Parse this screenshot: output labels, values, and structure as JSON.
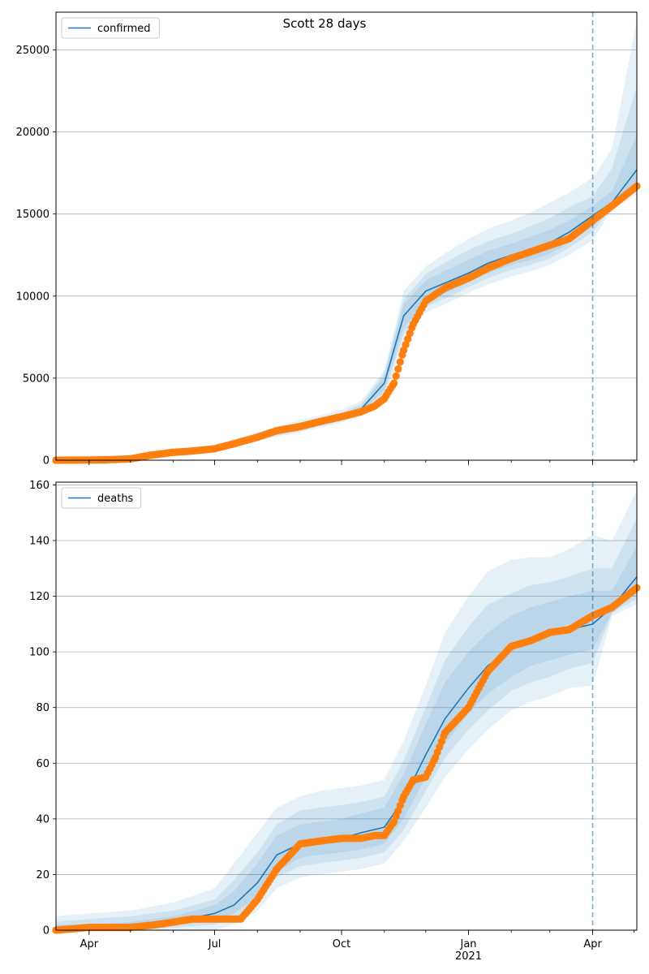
{
  "figure": {
    "title": "Scott 28 days"
  },
  "theme": {
    "line": "#1f77b4",
    "points": "#ff7f0e",
    "band": "#1f77b4",
    "grid": "#b0b0b0"
  },
  "chart_data": [
    {
      "type": "line",
      "name": "confirmed-panel",
      "legend": "confirmed",
      "legend_position": "top-left",
      "grid": "horizontal",
      "x_range": [
        "2020-03-08",
        "2021-05-03"
      ],
      "ylim": [
        0,
        27300
      ],
      "yticks": [
        0,
        5000,
        10000,
        15000,
        20000,
        25000
      ],
      "forecast_start": "2021-04-01",
      "model": {
        "x": [
          "2020-03-08",
          "2020-04-01",
          "2020-05-01",
          "2020-06-01",
          "2020-07-01",
          "2020-08-01",
          "2020-09-01",
          "2020-10-01",
          "2020-10-15",
          "2020-11-01",
          "2020-11-15",
          "2020-12-01",
          "2020-12-15",
          "2021-01-01",
          "2021-01-15",
          "2021-02-01",
          "2021-02-15",
          "2021-03-01",
          "2021-03-15",
          "2021-04-01",
          "2021-04-15",
          "2021-05-03"
        ],
        "y": [
          0,
          10,
          80,
          480,
          700,
          1400,
          2000,
          2650,
          3100,
          4700,
          8800,
          10300,
          10800,
          11400,
          12000,
          12500,
          12850,
          13250,
          13900,
          14900,
          15700,
          17700
        ],
        "bands": [
          {
            "lower": [
              0,
              0,
              20,
              380,
              560,
              1200,
              1700,
              2300,
              2700,
              3800,
              7200,
              9000,
              9500,
              10200,
              10700,
              11200,
              11500,
              11900,
              12500,
              13400,
              15300,
              16200
            ],
            "upper": [
              200,
              300,
              260,
              680,
              920,
              1700,
              2450,
              3050,
              3600,
              5500,
              10300,
              11800,
              12600,
              13500,
              14100,
              14600,
              15100,
              15700,
              16300,
              17200,
              19000,
              26800
            ]
          },
          {
            "lower": [
              0,
              0,
              40,
              410,
              610,
              1270,
              1800,
              2400,
              2820,
              4050,
              7700,
              9350,
              9850,
              10550,
              11100,
              11600,
              11900,
              12300,
              12950,
              13900,
              15400,
              16600
            ],
            "upper": [
              140,
              200,
              190,
              600,
              840,
              1600,
              2300,
              2900,
              3420,
              5300,
              9800,
              11350,
              12050,
              12800,
              13350,
              13800,
              14250,
              14750,
              15400,
              16100,
              17800,
              22800
            ]
          },
          {
            "lower": [
              0,
              0,
              55,
              440,
              650,
              1320,
              1880,
              2480,
              2920,
              4300,
              8100,
              9650,
              10150,
              10850,
              11400,
              11900,
              12200,
              12600,
              13250,
              14250,
              15500,
              16900
            ],
            "upper": [
              90,
              130,
              140,
              550,
              780,
              1520,
              2180,
              2800,
              3280,
              5100,
              9500,
              10950,
              11550,
              12200,
              12750,
              13200,
              13600,
              14050,
              14600,
              15500,
              16400,
              19800
            ]
          }
        ]
      },
      "observed": {
        "x": [
          "2020-03-08",
          "2020-04-01",
          "2020-04-15",
          "2020-05-01",
          "2020-05-15",
          "2020-06-01",
          "2020-06-15",
          "2020-07-01",
          "2020-07-15",
          "2020-08-01",
          "2020-08-15",
          "2020-09-01",
          "2020-09-15",
          "2020-10-01",
          "2020-10-15",
          "2020-10-25",
          "2020-11-01",
          "2020-11-08",
          "2020-11-15",
          "2020-11-22",
          "2020-12-01",
          "2020-12-15",
          "2021-01-01",
          "2021-01-15",
          "2021-02-01",
          "2021-02-15",
          "2021-03-01",
          "2021-03-15",
          "2021-04-01",
          "2021-04-15",
          "2021-05-03"
        ],
        "y": [
          0,
          10,
          30,
          80,
          300,
          480,
          560,
          700,
          1000,
          1400,
          1800,
          2050,
          2350,
          2650,
          2950,
          3300,
          3750,
          4700,
          6700,
          8300,
          9700,
          10500,
          11100,
          11700,
          12300,
          12700,
          13100,
          13500,
          14600,
          15500,
          16700
        ]
      }
    },
    {
      "type": "line",
      "name": "deaths-panel",
      "legend": "deaths",
      "legend_position": "top-left",
      "grid": "horizontal",
      "x_range": [
        "2020-03-08",
        "2021-05-03"
      ],
      "ylim": [
        0,
        161
      ],
      "yticks": [
        0,
        20,
        40,
        60,
        80,
        100,
        120,
        140,
        160
      ],
      "xticks": [
        {
          "date": "2020-04-01",
          "label": "Apr"
        },
        {
          "date": "2020-07-01",
          "label": "Jul"
        },
        {
          "date": "2020-10-01",
          "label": "Oct"
        },
        {
          "date": "2021-01-01",
          "label": "Jan"
        },
        {
          "date": "2021-04-01",
          "label": "Apr"
        }
      ],
      "xtick_year_label": "2021",
      "forecast_start": "2021-04-01",
      "model": {
        "x": [
          "2020-03-08",
          "2020-04-01",
          "2020-05-01",
          "2020-06-01",
          "2020-07-01",
          "2020-07-15",
          "2020-08-01",
          "2020-08-15",
          "2020-09-01",
          "2020-09-15",
          "2020-10-01",
          "2020-10-15",
          "2020-11-01",
          "2020-11-15",
          "2020-12-01",
          "2020-12-15",
          "2021-01-01",
          "2021-01-15",
          "2021-02-01",
          "2021-02-15",
          "2021-03-01",
          "2021-03-15",
          "2021-04-01",
          "2021-04-15",
          "2021-05-03"
        ],
        "y": [
          0,
          1,
          1,
          3,
          6,
          9,
          17,
          27,
          31,
          32,
          33,
          35,
          37,
          47,
          63,
          76,
          87,
          95,
          101,
          104,
          106,
          108,
          110,
          116,
          127
        ],
        "bands": [
          {
            "lower": [
              0,
              0,
              0,
              0,
              0,
              2,
              7,
              15,
              19,
              20,
              21,
              22,
              24,
              32,
              44,
              55,
              65,
              72,
              79,
              82,
              84,
              87,
              88,
              113,
              117
            ],
            "upper": [
              5,
              6,
              7,
              10,
              15,
              24,
              35,
              44,
              48,
              50,
              51,
              52,
              54,
              68,
              88,
              107,
              120,
              129,
              133,
              134,
              134,
              137,
              142,
              140,
              158
            ]
          },
          {
            "lower": [
              0,
              0,
              0,
              1,
              2,
              4,
              10,
              19,
              23,
              24,
              25,
              26,
              28,
              36,
              50,
              62,
              72,
              79,
              86,
              89,
              91,
              94,
              96,
              114,
              119
            ],
            "upper": [
              3,
              4,
              5,
              7,
              11,
              18,
              28,
              38,
              43,
              44,
              45,
              46,
              48,
              61,
              80,
              97,
              109,
              117,
              121,
              124,
              125,
              127,
              130,
              130,
              148
            ]
          },
          {
            "lower": [
              0,
              0,
              0,
              2,
              3,
              6,
              12,
              21,
              26,
              27,
              28,
              29,
              31,
              40,
              55,
              67,
              78,
              85,
              91,
              95,
              97,
              99,
              101,
              114,
              121
            ],
            "upper": [
              2,
              2,
              3,
              5,
              9,
              14,
              24,
              34,
              38,
              39,
              40,
              42,
              44,
              56,
              74,
              89,
              100,
              107,
              113,
              116,
              118,
              120,
              122,
              122,
              138
            ]
          }
        ]
      },
      "observed": {
        "x": [
          "2020-03-08",
          "2020-04-01",
          "2020-05-01",
          "2020-05-20",
          "2020-06-15",
          "2020-07-01",
          "2020-07-20",
          "2020-08-01",
          "2020-08-15",
          "2020-09-01",
          "2020-09-15",
          "2020-10-01",
          "2020-10-15",
          "2020-10-25",
          "2020-11-01",
          "2020-11-08",
          "2020-11-15",
          "2020-11-22",
          "2020-12-01",
          "2020-12-08",
          "2020-12-15",
          "2021-01-01",
          "2021-01-15",
          "2021-02-01",
          "2021-02-15",
          "2021-03-01",
          "2021-03-15",
          "2021-04-01",
          "2021-04-15",
          "2021-05-03"
        ],
        "y": [
          0,
          1,
          1,
          2,
          4,
          4,
          4,
          11,
          22,
          31,
          32,
          33,
          33,
          34,
          34,
          39,
          48,
          54,
          55,
          62,
          71,
          80,
          93,
          102,
          104,
          107,
          108,
          113,
          116,
          123
        ]
      }
    }
  ]
}
